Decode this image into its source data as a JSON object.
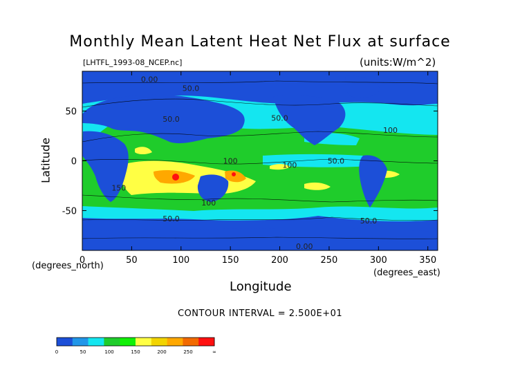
{
  "chart_data": {
    "type": "heatmap",
    "title": "Monthly Mean Latent Heat Net Flux at surface",
    "file_label": "[LHTFL_1993-08_NCEP.nc]",
    "units_label": "(units:W/m^2)",
    "xlabel": "Longitude",
    "ylabel": "Latitude",
    "x_unit_label": "(degrees_east)",
    "y_unit_label": "(degrees_north)",
    "xlim": [
      0,
      360
    ],
    "ylim": [
      -90,
      90
    ],
    "x_ticks": [
      0,
      50,
      100,
      150,
      200,
      250,
      300,
      350
    ],
    "y_ticks": [
      -50,
      0,
      50
    ],
    "contour_interval_text": "CONTOUR INTERVAL = 2.500E+01",
    "contour_labels": [
      {
        "text": "0.00",
        "lon": 68,
        "lat": 82
      },
      {
        "text": "50.0",
        "lon": 110,
        "lat": 73
      },
      {
        "text": "50.0",
        "lon": 90,
        "lat": 42
      },
      {
        "text": "50.0",
        "lon": 200,
        "lat": 43
      },
      {
        "text": "100",
        "lon": 312,
        "lat": 31
      },
      {
        "text": "100",
        "lon": 150,
        "lat": 0
      },
      {
        "text": "100",
        "lon": 210,
        "lat": -4
      },
      {
        "text": "50.0",
        "lon": 257,
        "lat": 0
      },
      {
        "text": "150",
        "lon": 37,
        "lat": -27
      },
      {
        "text": "100",
        "lon": 128,
        "lat": -42
      },
      {
        "text": "50.0",
        "lon": 90,
        "lat": -58
      },
      {
        "text": "50.0",
        "lon": 290,
        "lat": -60
      },
      {
        "text": "0.00",
        "lon": 225,
        "lat": -86
      }
    ],
    "colorbar": {
      "levels": [
        "0",
        "50",
        "100",
        "150",
        "200",
        "250",
        "∞"
      ],
      "colors": [
        "#1c4fd8",
        "#2196e8",
        "#14e6f0",
        "#1fcc2b",
        "#11f007",
        "#ffff44",
        "#f2d400",
        "#ffa800",
        "#f26a00",
        "#ff1010"
      ]
    }
  }
}
